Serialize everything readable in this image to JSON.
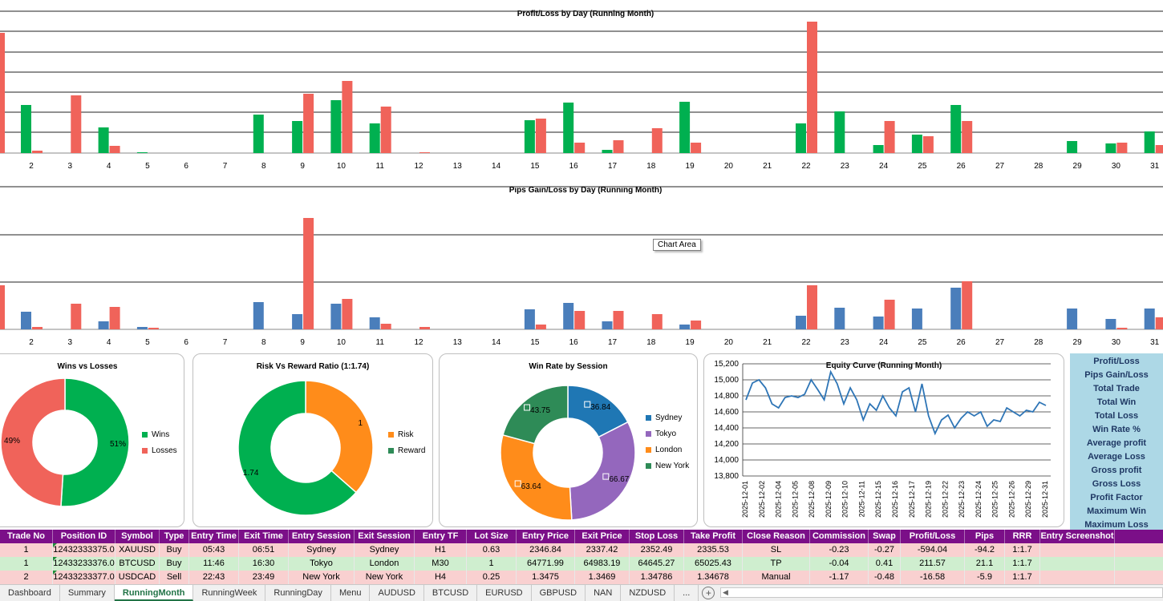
{
  "charts": {
    "pl": {
      "title": "Profit/Loss by Day (Running Month)",
      "days": [
        "2",
        "3",
        "4",
        "5",
        "6",
        "7",
        "8",
        "9",
        "10",
        "11",
        "12",
        "13",
        "14",
        "15",
        "16",
        "17",
        "18",
        "19",
        "20",
        "21",
        "22",
        "23",
        "24",
        "25",
        "26",
        "27",
        "28",
        "29",
        "30",
        "31"
      ],
      "gains": [
        60,
        0,
        32,
        1,
        0,
        0,
        48,
        40,
        66,
        37,
        0,
        0,
        0,
        41,
        63,
        4,
        0,
        64,
        0,
        0,
        37,
        52,
        10,
        23,
        60,
        0,
        0,
        15,
        12,
        27
      ],
      "losses": [
        3,
        72,
        9,
        0,
        0,
        0,
        0,
        74,
        90,
        58,
        1,
        0,
        0,
        43,
        13,
        16,
        31,
        13,
        0,
        0,
        164,
        0,
        40,
        21,
        40,
        0,
        0,
        0,
        13,
        10
      ],
      "first_loss": 150
    },
    "pips": {
      "title": "Pips Gain/Loss by Day (Running Month)",
      "days": [
        "2",
        "3",
        "4",
        "5",
        "6",
        "7",
        "8",
        "9",
        "10",
        "11",
        "12",
        "13",
        "14",
        "15",
        "16",
        "17",
        "18",
        "19",
        "20",
        "21",
        "22",
        "23",
        "24",
        "25",
        "26",
        "27",
        "28",
        "29",
        "30",
        "31"
      ],
      "gains": [
        22,
        0,
        10,
        3,
        0,
        0,
        34,
        19,
        32,
        15,
        0,
        0,
        0,
        25,
        33,
        10,
        0,
        6,
        0,
        0,
        17,
        27,
        16,
        26,
        52,
        0,
        0,
        26,
        13,
        26
      ],
      "losses": [
        3,
        32,
        28,
        2,
        0,
        0,
        0,
        139,
        38,
        7,
        3,
        0,
        0,
        6,
        23,
        23,
        19,
        11,
        0,
        0,
        55,
        0,
        37,
        0,
        60,
        0,
        0,
        0,
        2,
        15
      ],
      "first_loss": 55
    },
    "tooltip": "Chart Area",
    "wins_losses": {
      "title": "Wins vs Losses",
      "slices": [
        {
          "label": "Wins",
          "value": 51,
          "text": "51%",
          "color": "#00b050"
        },
        {
          "label": "Losses",
          "value": 49,
          "text": "49%",
          "color": "#f0635a"
        }
      ]
    },
    "risk_reward": {
      "title": "Risk Vs Reward Ratio (1:1.74)",
      "slices": [
        {
          "label": "Risk",
          "value": 1,
          "text": "1",
          "color": "#ff8c1a"
        },
        {
          "label": "Reward",
          "value": 1.74,
          "text": "1.74",
          "color": "#00b050"
        }
      ]
    },
    "session": {
      "title": "Win Rate by Session",
      "slices": [
        {
          "label": "Sydney",
          "value": 36.84,
          "text": "36.84",
          "color": "#1f77b4"
        },
        {
          "label": "Tokyo",
          "value": 66.67,
          "text": "66.67",
          "color": "#9467bd"
        },
        {
          "label": "London",
          "value": 63.64,
          "text": "63.64",
          "color": "#ff8c1a"
        },
        {
          "label": "New York",
          "value": 43.75,
          "text": "43.75",
          "color": "#2e8b57"
        }
      ]
    },
    "equity": {
      "title": "Equity Curve (Running Month)",
      "y_ticks": [
        "15,200",
        "15,000",
        "14,800",
        "14,600",
        "14,400",
        "14,200",
        "14,000",
        "13,800"
      ],
      "x_labels": [
        "2025-12-01",
        "2025-12-02",
        "2025-12-04",
        "2025-12-05",
        "2025-12-08",
        "2025-12-09",
        "2025-12-10",
        "2025-12-11",
        "2025-12-15",
        "2025-12-16",
        "2025-12-17",
        "2025-12-19",
        "2025-12-22",
        "2025-12-23",
        "2025-12-24",
        "2025-12-25",
        "2025-12-26",
        "2025-12-29",
        "2025-12-31"
      ],
      "ylim": [
        13800,
        15200
      ],
      "values": [
        14750,
        14960,
        15000,
        14900,
        14700,
        14650,
        14780,
        14800,
        14780,
        14820,
        15000,
        14880,
        14750,
        15100,
        14950,
        14700,
        14900,
        14750,
        14500,
        14700,
        14620,
        14800,
        14650,
        14550,
        14850,
        14900,
        14600,
        14950,
        14550,
        14330,
        14500,
        14560,
        14400,
        14520,
        14600,
        14550,
        14600,
        14420,
        14500,
        14480,
        14650,
        14600,
        14550,
        14620,
        14600,
        14720,
        14680
      ]
    }
  },
  "stats": [
    "Profit/Loss",
    "Pips Gain/Loss",
    "Total Trade",
    "Total Win",
    "Total Loss",
    "Win Rate %",
    "Average profit",
    "Average Loss",
    "Gross profit",
    "Gross Loss",
    "Profit Factor",
    "Maximum Win",
    "Maximum Loss"
  ],
  "table": {
    "headers": [
      "Trade No",
      "Position ID",
      "Symbol",
      "Type",
      "Entry Time",
      "Exit Time",
      "Entry Session",
      "Exit Session",
      "Entry TF",
      "Lot Size",
      "Entry Price",
      "Exit Price",
      "Stop Loss",
      "Take Profit",
      "Close Reason",
      "Commission",
      "Swap",
      "Profit/Loss",
      "Pips",
      "RRR",
      "Entry Screenshot"
    ],
    "rows": [
      {
        "style": "red",
        "cells": [
          "1",
          "12432333375.0",
          "XAUUSD",
          "Buy",
          "05:43",
          "06:51",
          "Sydney",
          "Sydney",
          "H1",
          "0.63",
          "2346.84",
          "2337.42",
          "2352.49",
          "2335.53",
          "SL",
          "-0.23",
          "-0.27",
          "-594.04",
          "-94.2",
          "1:1.7",
          ""
        ]
      },
      {
        "style": "green",
        "cells": [
          "1",
          "12433233376.0",
          "BTCUSD",
          "Buy",
          "11:46",
          "16:30",
          "Tokyo",
          "London",
          "M30",
          "1",
          "64771.99",
          "64983.19",
          "64645.27",
          "65025.43",
          "TP",
          "-0.04",
          "0.41",
          "211.57",
          "21.1",
          "1:1.7",
          ""
        ]
      },
      {
        "style": "red",
        "cells": [
          "2",
          "12433233377.0",
          "USDCAD",
          "Sell",
          "22:43",
          "23:49",
          "New York",
          "New York",
          "H4",
          "0.25",
          "1.3475",
          "1.3469",
          "1.34786",
          "1.34678",
          "Manual",
          "-1.17",
          "-0.48",
          "-16.58",
          "-5.9",
          "1:1.7",
          ""
        ]
      }
    ]
  },
  "tabs": [
    "Dashboard",
    "Summary",
    "RunningMonth",
    "RunningWeek",
    "RunningDay",
    "Menu",
    "AUDUSD",
    "BTCUSD",
    "EURUSD",
    "GBPUSD",
    "NAN",
    "NZDUSD",
    "..."
  ],
  "active_tab": "RunningMonth",
  "colors": {
    "green": "#00b050",
    "red": "#f0635a",
    "blue": "#4a7ebb",
    "header": "#7b0f88"
  }
}
